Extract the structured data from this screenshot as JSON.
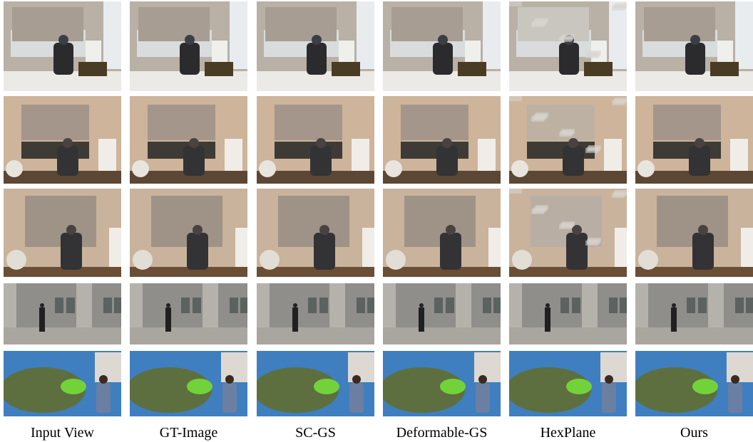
{
  "figure": {
    "columns": [
      "Input View",
      "GT-Image",
      "SC-GS",
      "Deformable-GS",
      "HexPlane",
      "Ours"
    ]
  }
}
